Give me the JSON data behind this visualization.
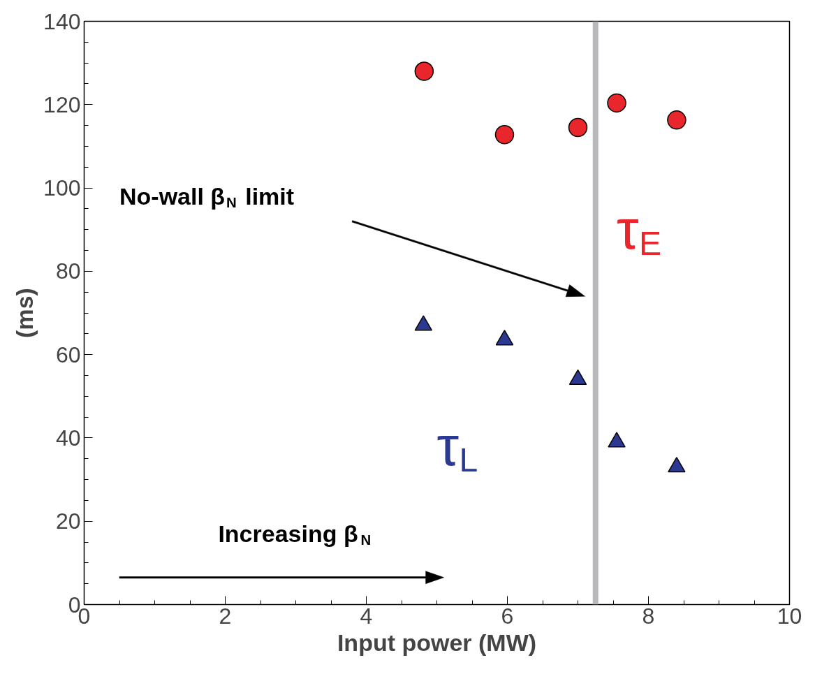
{
  "chart_data": {
    "type": "scatter",
    "xlabel": "Input power (MW)",
    "ylabel": "(ms)",
    "xlim": [
      0,
      10
    ],
    "xticks": [
      0,
      2,
      4,
      6,
      8,
      10
    ],
    "ylim": [
      0,
      140
    ],
    "yticks": [
      0,
      20,
      40,
      60,
      80,
      100,
      120,
      140
    ],
    "grid": false,
    "series": [
      {
        "name": "τ$_{E}$",
        "color": "#e8262b",
        "marker": "circle",
        "x": [
          4.82,
          5.96,
          7.0,
          7.55,
          8.4
        ],
        "values": [
          128,
          112.8,
          114.5,
          120.4,
          116.3
        ]
      },
      {
        "name": "τ$_{L}$",
        "color": "#2b3990",
        "marker": "triangle",
        "x": [
          4.81,
          5.96,
          7.0,
          7.55,
          8.4
        ],
        "values": [
          67,
          63.5,
          54,
          39,
          33
        ]
      }
    ],
    "ref_lines": [
      {
        "axis": "x",
        "value": 7.25,
        "color": "#b8b8bc"
      }
    ],
    "annotations": [
      "No-wall β$_{N}$ limit",
      "Increasing β$_{N}$"
    ]
  }
}
